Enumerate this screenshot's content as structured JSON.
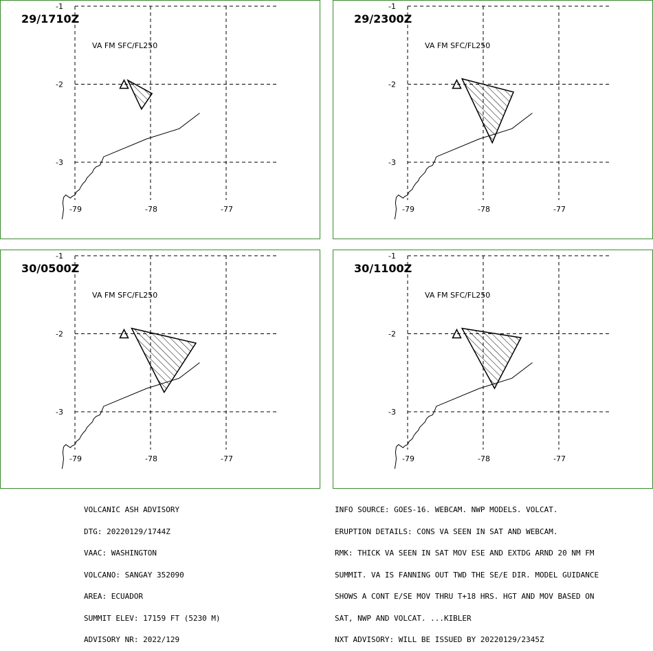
{
  "panels": [
    {
      "time": "29/1710Z",
      "layer": "VA FM SFC/FL250",
      "ash_polygon": [
        [
          -78.3,
          -1.95
        ],
        [
          -77.98,
          -2.12
        ],
        [
          -78.12,
          -2.32
        ]
      ]
    },
    {
      "time": "29/2300Z",
      "layer": "VA FM SFC/FL250",
      "ash_polygon": [
        [
          -78.28,
          -1.93
        ],
        [
          -77.6,
          -2.1
        ],
        [
          -77.88,
          -2.75
        ]
      ]
    },
    {
      "time": "30/0500Z",
      "layer": "VA FM SFC/FL250",
      "ash_polygon": [
        [
          -78.25,
          -1.93
        ],
        [
          -77.4,
          -2.12
        ],
        [
          -77.82,
          -2.75
        ]
      ]
    },
    {
      "time": "30/1100Z",
      "layer": "VA FM SFC/FL250",
      "ash_polygon": [
        [
          -78.28,
          -1.93
        ],
        [
          -77.5,
          -2.05
        ],
        [
          -77.85,
          -2.7
        ]
      ]
    }
  ],
  "map": {
    "lon_ticks": [
      -79,
      -78,
      -77
    ],
    "lat_ticks": [
      -1,
      -2,
      -3
    ],
    "lon_tick_labels": [
      "-79",
      "-78",
      "-77"
    ],
    "lat_tick_labels": [
      "-1",
      "-2",
      "-3"
    ],
    "volcano_lonlat": [
      -78.35,
      -2.0
    ],
    "coastline": [
      [
        -77.35,
        -2.37
      ],
      [
        -77.62,
        -2.57
      ],
      [
        -78.05,
        -2.7
      ],
      [
        -78.62,
        -2.93
      ],
      [
        -78.64,
        -2.98
      ],
      [
        -78.67,
        -3.04
      ],
      [
        -78.72,
        -3.06
      ],
      [
        -78.75,
        -3.09
      ],
      [
        -78.77,
        -3.13
      ],
      [
        -78.8,
        -3.16
      ],
      [
        -78.84,
        -3.2
      ],
      [
        -78.86,
        -3.24
      ],
      [
        -78.89,
        -3.27
      ],
      [
        -78.92,
        -3.31
      ],
      [
        -78.94,
        -3.35
      ],
      [
        -78.98,
        -3.38
      ],
      [
        -79.0,
        -3.42
      ],
      [
        -79.04,
        -3.44
      ],
      [
        -79.06,
        -3.46
      ],
      [
        -79.12,
        -3.42
      ],
      [
        -79.15,
        -3.45
      ],
      [
        -79.16,
        -3.52
      ],
      [
        -79.15,
        -3.6
      ],
      [
        -79.16,
        -3.68
      ],
      [
        -79.17,
        -3.73
      ]
    ],
    "grid_color": "#000000",
    "border_color": "#3a8a2e"
  },
  "footer_left": [
    "VOLCANIC ASH ADVISORY",
    "DTG: 20220129/1744Z",
    "VAAC: WASHINGTON",
    "VOLCANO: SANGAY 352090",
    "AREA: ECUADOR",
    "SUMMIT ELEV: 17159 FT (5230 M)",
    "ADVISORY NR: 2022/129"
  ],
  "footer_right": [
    "INFO SOURCE: GOES-16. WEBCAM. NWP MODELS. VOLCAT.",
    "ERUPTION DETAILS: CONS VA SEEN IN SAT AND WEBCAM.",
    "RMK: THICK VA SEEN IN SAT MOV ESE AND EXTDG ARND 20 NM FM",
    "SUMMIT. VA IS FANNING OUT TWD THE SE/E DIR. MODEL GUIDANCE",
    "SHOWS A CONT E/SE MOV THRU T+18 HRS. HGT AND MOV BASED ON",
    "SAT, NWP AND VOLCAT. ...KIBLER",
    "NXT ADVISORY: WILL BE ISSUED BY 20220129/2345Z"
  ]
}
